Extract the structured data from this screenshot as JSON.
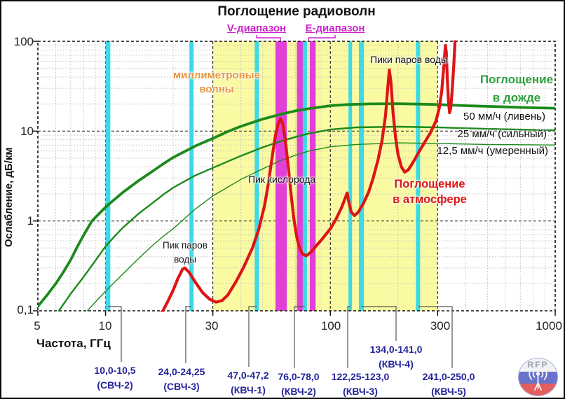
{
  "title": "Поглощение радиоволн",
  "band_headers": {
    "v": "V-диапазон",
    "e": "Е-диапазон"
  },
  "axes": {
    "x_label": "Частота, ГГц",
    "y_label": "Ослабление, дБ/км",
    "x_tick_labels": [
      "5",
      "10",
      "30",
      "100",
      "300",
      "1000"
    ],
    "x_tick_values": [
      5,
      10,
      30,
      100,
      300,
      1000
    ],
    "y_tick_labels": [
      "100",
      "10",
      "1",
      "0,1"
    ],
    "y_tick_values": [
      100,
      10,
      1,
      0.1
    ],
    "x_range_ghz": [
      5,
      1000
    ],
    "y_range_db_km": [
      0.1,
      100
    ],
    "log_x": true,
    "log_y": true
  },
  "annotations": {
    "mm_waves": [
      "миллиметровые",
      "волны"
    ],
    "water_peak": [
      "Пик паров",
      "воды"
    ],
    "oxygen_peak": "Пик кислорода",
    "water_peaks": "Пики паров воды",
    "atmosphere": [
      "Поглощение",
      "в атмосфере"
    ],
    "rain": [
      "Поглощение",
      "в дожде"
    ],
    "rain_rates": [
      "50 мм/ч (ливень)",
      "25 мм/ч (сильный)",
      "12,5 мм/ч (умеренный)"
    ]
  },
  "frequency_allocations": [
    {
      "range": "10,0-10,5",
      "band": "(СВЧ-2)",
      "f1": 10,
      "f2": 10.5
    },
    {
      "range": "24,0-24,25",
      "band": "(СВЧ-3)",
      "f1": 24,
      "f2": 24.25
    },
    {
      "range": "47,0-47,2",
      "band": "(КВЧ-1)",
      "f1": 47,
      "f2": 47.2
    },
    {
      "range": "76,0-78,0",
      "band": "(КВЧ-2)",
      "f1": 76,
      "f2": 78
    },
    {
      "range": "122,25-123,0",
      "band": "(КВЧ-3)",
      "f1": 122.25,
      "f2": 123
    },
    {
      "range": "134,0-141,0",
      "band": "(КВЧ-4)",
      "f1": 134,
      "f2": 141
    },
    {
      "range": "241,0-250,0",
      "band": "(КВЧ-5)",
      "f1": 241,
      "f2": 250
    }
  ],
  "chart_data": {
    "type": "line",
    "title": "Поглощение радиоволн",
    "xlabel": "Частота, ГГц",
    "ylabel": "Ослабление, дБ/км",
    "xlim": [
      5,
      1000
    ],
    "ylim": [
      0.1,
      100
    ],
    "log_x": true,
    "log_y": true,
    "grid": true,
    "major_x_gridlines": [
      10,
      30,
      100,
      300
    ],
    "major_y_gridlines": [
      1,
      10
    ],
    "bands": [
      {
        "label": "миллиметровые волны",
        "f1": 30,
        "f2": 300,
        "layer": "bg",
        "color_key": "mm_band"
      },
      {
        "label": "V-диапазон",
        "f1": 57,
        "f2": 64,
        "layer": "magenta",
        "color_key": "v_e_band"
      },
      {
        "label": "E-диапазон (71-76)",
        "f1": 71,
        "f2": 76,
        "layer": "magenta",
        "color_key": "v_e_band"
      },
      {
        "label": "E-диапазон (81-86)",
        "f1": 81,
        "f2": 86,
        "layer": "magenta",
        "color_key": "v_e_band"
      },
      {
        "label": "СВЧ-2",
        "f1": 10,
        "f2": 10.5,
        "layer": "cyan",
        "color_key": "allocation_band",
        "min_w": 6.5
      },
      {
        "label": "СВЧ-3",
        "f1": 24,
        "f2": 24.25,
        "layer": "cyan",
        "color_key": "allocation_band",
        "min_w": 6
      },
      {
        "label": "КВЧ-1",
        "f1": 47,
        "f2": 47.2,
        "layer": "cyan",
        "color_key": "allocation_band",
        "min_w": 6
      },
      {
        "label": "КВЧ-2",
        "f1": 76,
        "f2": 78,
        "layer": "cyan",
        "color_key": "allocation_band",
        "min_w": 6
      },
      {
        "label": "КВЧ-3",
        "f1": 122.25,
        "f2": 123,
        "layer": "cyan",
        "color_key": "allocation_band",
        "min_w": 5
      },
      {
        "label": "КВЧ-4",
        "f1": 134,
        "f2": 141,
        "layer": "cyan",
        "color_key": "allocation_band",
        "min_w": 7
      },
      {
        "label": "КВЧ-5",
        "f1": 241,
        "f2": 250,
        "layer": "cyan",
        "color_key": "allocation_band",
        "min_w": 6
      }
    ],
    "series": [
      {
        "id": "rain50",
        "name": "50 мм/ч (ливень)",
        "group": "Поглощение в дожде",
        "color_key": "rain_curve",
        "width": 3.8,
        "points": [
          [
            5,
            0.112
          ],
          [
            5.5,
            0.15
          ],
          [
            6,
            0.2
          ],
          [
            6.5,
            0.27
          ],
          [
            7,
            0.37
          ],
          [
            7.5,
            0.52
          ],
          [
            8,
            0.7
          ],
          [
            8.7,
            1.0
          ],
          [
            9.5,
            1.25
          ],
          [
            10,
            1.42
          ],
          [
            11,
            1.75
          ],
          [
            12,
            2.1
          ],
          [
            14,
            2.8
          ],
          [
            16,
            3.5
          ],
          [
            18,
            4.3
          ],
          [
            20,
            5.1
          ],
          [
            25,
            6.8
          ],
          [
            30,
            8.3
          ],
          [
            35,
            9.9
          ],
          [
            40,
            11.3
          ],
          [
            50,
            13.6
          ],
          [
            60,
            15.4
          ],
          [
            70,
            16.8
          ],
          [
            80,
            17.8
          ],
          [
            100,
            19.2
          ],
          [
            120,
            19.8
          ],
          [
            150,
            20.1
          ],
          [
            200,
            20.2
          ],
          [
            300,
            19.8
          ],
          [
            400,
            19.2
          ],
          [
            600,
            18.6
          ],
          [
            800,
            18.2
          ],
          [
            1000,
            18
          ]
        ]
      },
      {
        "id": "rain25",
        "name": "25 мм/ч (сильный)",
        "group": "Поглощение в дожде",
        "color_key": "rain_curve",
        "width": 2.4,
        "points": [
          [
            6.2,
            0.1
          ],
          [
            7,
            0.155
          ],
          [
            8,
            0.24
          ],
          [
            9,
            0.36
          ],
          [
            10,
            0.52
          ],
          [
            11,
            0.68
          ],
          [
            12,
            0.85
          ],
          [
            14,
            1.2
          ],
          [
            16,
            1.55
          ],
          [
            18,
            1.95
          ],
          [
            20,
            2.35
          ],
          [
            25,
            3.2
          ],
          [
            30,
            3.9
          ],
          [
            40,
            5.3
          ],
          [
            50,
            6.6
          ],
          [
            60,
            7.7
          ],
          [
            70,
            8.6
          ],
          [
            80,
            9.4
          ],
          [
            100,
            10.4
          ],
          [
            130,
            11.0
          ],
          [
            200,
            11.2
          ],
          [
            300,
            11.0
          ],
          [
            500,
            10.6
          ],
          [
            1000,
            10.2
          ]
        ]
      },
      {
        "id": "rain12",
        "name": "12,5 мм/ч (умеренный)",
        "group": "Поглощение в дожде",
        "color_key": "rain_curve",
        "width": 1.4,
        "points": [
          [
            8.3,
            0.1
          ],
          [
            9,
            0.125
          ],
          [
            10,
            0.165
          ],
          [
            12,
            0.26
          ],
          [
            14,
            0.38
          ],
          [
            16,
            0.52
          ],
          [
            18,
            0.67
          ],
          [
            20,
            0.82
          ],
          [
            25,
            1.35
          ],
          [
            30,
            1.9
          ],
          [
            40,
            2.9
          ],
          [
            50,
            3.8
          ],
          [
            60,
            4.7
          ],
          [
            70,
            5.4
          ],
          [
            80,
            6.0
          ],
          [
            100,
            6.7
          ],
          [
            130,
            7.1
          ],
          [
            200,
            7.4
          ],
          [
            300,
            7.3
          ],
          [
            500,
            7.1
          ],
          [
            1000,
            7
          ]
        ]
      },
      {
        "id": "atmosphere",
        "name": "Поглощение в атмосфере",
        "color_key": "atmosphere_curve",
        "width": 4.2,
        "points": [
          [
            17,
            0.085
          ],
          [
            18,
            0.1
          ],
          [
            19,
            0.13
          ],
          [
            20,
            0.17
          ],
          [
            21,
            0.23
          ],
          [
            22,
            0.29
          ],
          [
            22.5,
            0.3
          ],
          [
            23.5,
            0.27
          ],
          [
            25,
            0.21
          ],
          [
            27,
            0.16
          ],
          [
            29,
            0.135
          ],
          [
            31,
            0.125
          ],
          [
            33,
            0.13
          ],
          [
            35,
            0.15
          ],
          [
            38,
            0.21
          ],
          [
            41,
            0.3
          ],
          [
            45,
            0.5
          ],
          [
            48,
            0.8
          ],
          [
            51,
            1.5
          ],
          [
            53,
            2.6
          ],
          [
            55,
            5
          ],
          [
            57,
            9
          ],
          [
            58.5,
            12
          ],
          [
            60,
            13.8
          ],
          [
            61.5,
            12
          ],
          [
            63,
            8
          ],
          [
            65,
            4
          ],
          [
            67,
            1.9
          ],
          [
            69,
            1.0
          ],
          [
            71,
            0.65
          ],
          [
            73,
            0.5
          ],
          [
            75,
            0.43
          ],
          [
            78,
            0.41
          ],
          [
            82,
            0.45
          ],
          [
            86,
            0.52
          ],
          [
            92,
            0.63
          ],
          [
            100,
            0.82
          ],
          [
            106,
            1.05
          ],
          [
            112,
            1.4
          ],
          [
            116,
            1.75
          ],
          [
            118.7,
            2.05
          ],
          [
            121,
            1.6
          ],
          [
            124,
            1.25
          ],
          [
            128,
            1.15
          ],
          [
            133,
            1.25
          ],
          [
            140,
            1.55
          ],
          [
            148,
            2.1
          ],
          [
            155,
            3
          ],
          [
            163,
            4.8
          ],
          [
            170,
            8
          ],
          [
            176,
            15
          ],
          [
            180,
            30
          ],
          [
            183,
            48
          ],
          [
            186,
            35
          ],
          [
            190,
            16
          ],
          [
            195,
            8.5
          ],
          [
            200,
            5.5
          ],
          [
            207,
            4.0
          ],
          [
            214,
            3.5
          ],
          [
            222,
            3.7
          ],
          [
            232,
            4.4
          ],
          [
            245,
            5.6
          ],
          [
            260,
            7.2
          ],
          [
            278,
            9.5
          ],
          [
            295,
            13
          ],
          [
            305,
            18
          ],
          [
            313,
            28
          ],
          [
            320,
            55
          ],
          [
            325,
            90
          ],
          [
            328,
            75
          ],
          [
            331,
            40
          ],
          [
            335,
            22
          ],
          [
            339,
            16
          ],
          [
            343,
            18
          ],
          [
            348,
            28
          ],
          [
            354,
            55
          ],
          [
            359,
            105
          ],
          [
            362,
            140
          ]
        ]
      }
    ]
  },
  "colors": {
    "background": "#ffffff",
    "plot_border": "#111111",
    "grid_major": "#333333",
    "grid_minor": "#c0c0c0",
    "mm_band": "#fafaa2",
    "allocation_band": "#3cd9e8",
    "v_e_band": "#e23ed8",
    "rain_curve": "#1b8a1b",
    "atmosphere_curve": "#dd1515",
    "rain_label": "#2f9e3f",
    "mm_label": "#e8963e",
    "allocation_label": "#24249c",
    "band_header_label": "#cc22cc",
    "callout": "#555555"
  },
  "logo": {
    "text": "RFP"
  }
}
